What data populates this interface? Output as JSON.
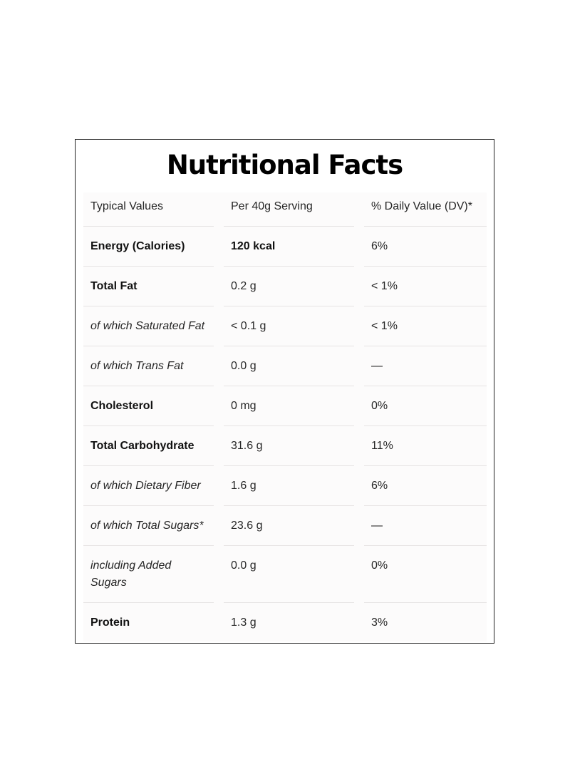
{
  "title": "Nutritional Facts",
  "header": {
    "col1": "Typical Values",
    "col2": "Per 40g Serving",
    "col3": "% Daily Value (DV)*"
  },
  "rows": [
    {
      "name": "Energy (Calories)",
      "amount": "120 kcal",
      "dv": "6%"
    },
    {
      "name": "Total Fat",
      "amount": "0.2 g",
      "dv": "< 1%"
    },
    {
      "name": "of which Saturated Fat",
      "amount": "< 0.1 g",
      "dv": "< 1%"
    },
    {
      "name": "of which Trans Fat",
      "amount": "0.0 g",
      "dv": "—"
    },
    {
      "name": "Cholesterol",
      "amount": "0 mg",
      "dv": "0%"
    },
    {
      "name": "Total Carbohydrate",
      "amount": "31.6 g",
      "dv": "11%"
    },
    {
      "name": "of which Dietary Fiber",
      "amount": "1.6 g",
      "dv": "6%"
    },
    {
      "name": "of which Total Sugars*",
      "amount": "23.6 g",
      "dv": "—"
    },
    {
      "name": "including Added Sugars",
      "amount": "0.0 g",
      "dv": "0%"
    },
    {
      "name": "Protein",
      "amount": "1.3 g",
      "dv": "3%"
    }
  ]
}
